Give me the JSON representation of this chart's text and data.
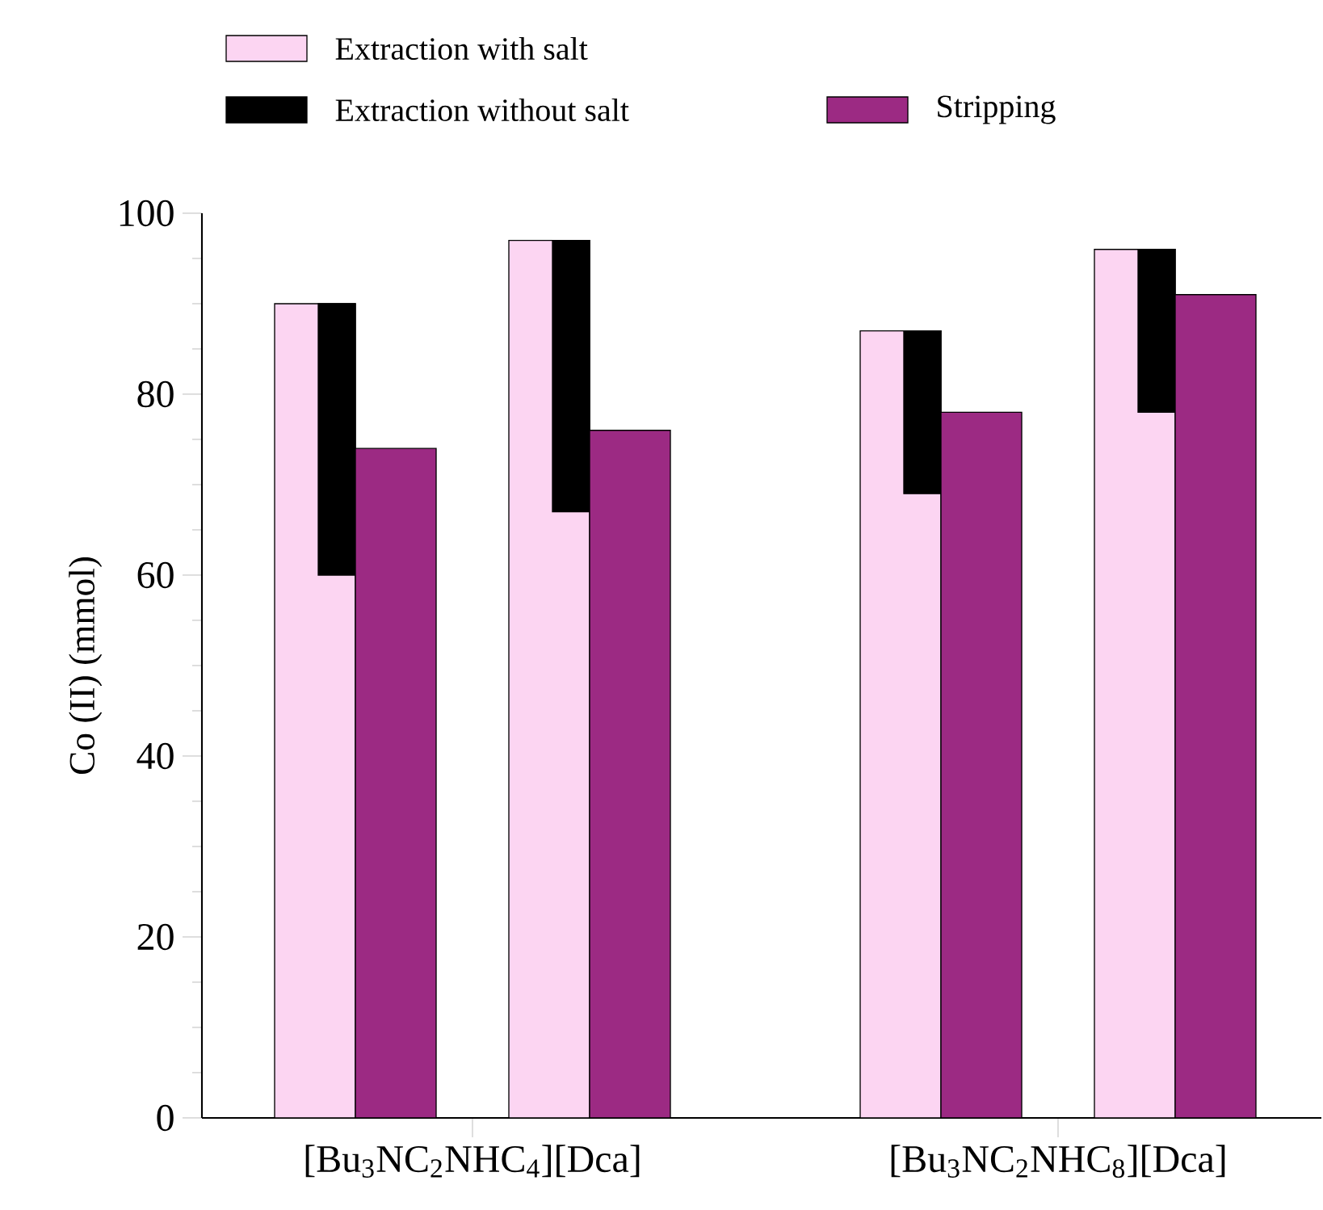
{
  "chart_data": {
    "type": "bar",
    "ylabel": "Co (II) (mmol)",
    "categories": [
      null,
      "[Bu$_{3}$NC$_{2}$NHC$_{4}$][Dca]",
      null,
      null,
      null,
      null,
      "[Bu$_{3}$NC$_{2}$NHC$_{8}$][Dca]",
      null
    ],
    "ylim": [
      0,
      100
    ],
    "yticks": [
      0,
      20,
      40,
      60,
      80,
      100
    ],
    "series": [
      {
        "name": "Extraction with salt",
        "color": "#fcd5f2",
        "values": [
          90,
          null,
          97,
          null,
          null,
          87,
          null,
          96
        ]
      },
      {
        "name": "Extraction without salt",
        "color": "#000000",
        "values": [
          30,
          null,
          30,
          null,
          null,
          18,
          null,
          18
        ],
        "base": [
          60,
          null,
          67,
          null,
          null,
          69,
          null,
          78
        ]
      },
      {
        "name": "Stripping",
        "color": "#9c2a83",
        "values": [
          74,
          null,
          76,
          null,
          null,
          78,
          null,
          91
        ]
      }
    ],
    "legend": "top"
  }
}
